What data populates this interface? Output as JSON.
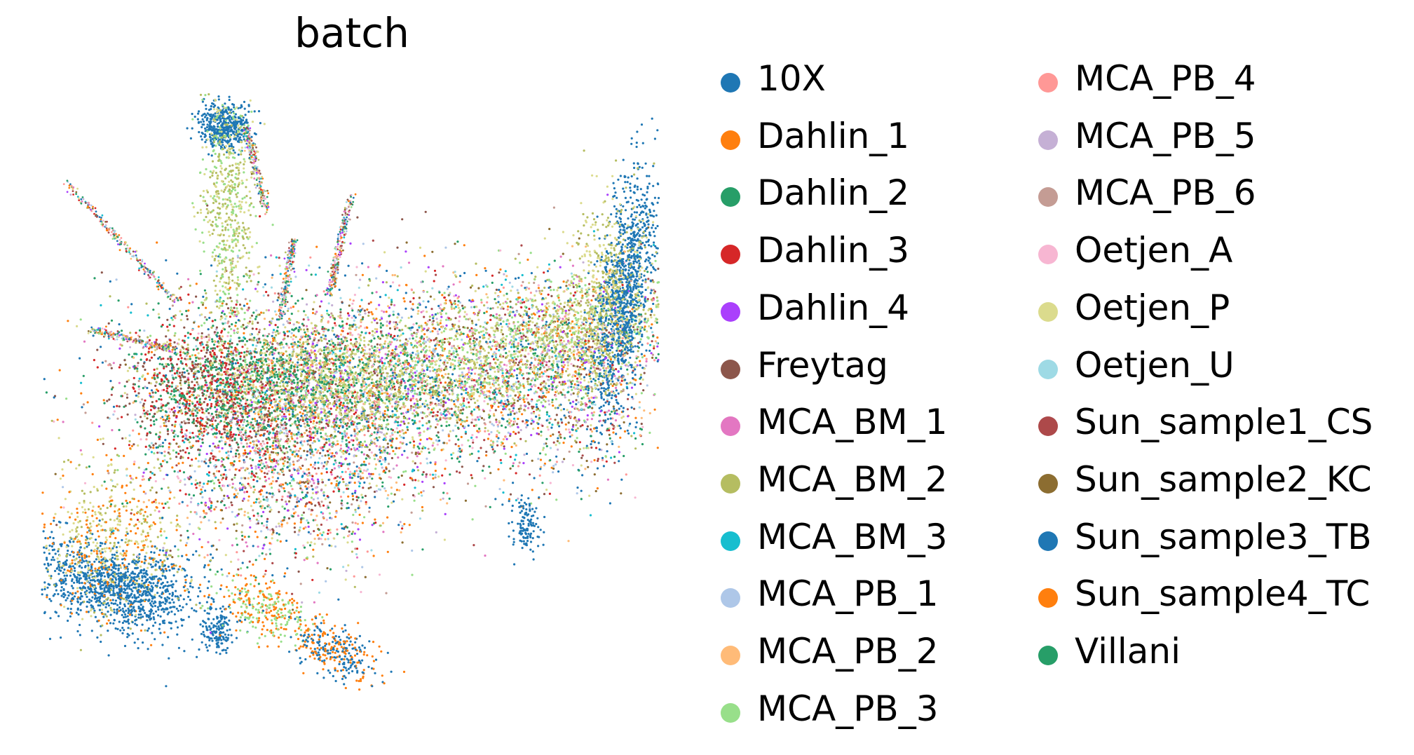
{
  "chart_data": {
    "type": "scatter",
    "title": "batch",
    "xlabel": "",
    "ylabel": "",
    "axes_visible": false,
    "legend_placement": "right, two columns",
    "series": [
      {
        "name": "10X",
        "color": "#1f77b4"
      },
      {
        "name": "Dahlin_1",
        "color": "#ff7f0e"
      },
      {
        "name": "Dahlin_2",
        "color": "#279e68"
      },
      {
        "name": "Dahlin_3",
        "color": "#d62728"
      },
      {
        "name": "Dahlin_4",
        "color": "#aa40fc"
      },
      {
        "name": "Freytag",
        "color": "#8c564b"
      },
      {
        "name": "MCA_BM_1",
        "color": "#e377c2"
      },
      {
        "name": "MCA_BM_2",
        "color": "#b5bd61"
      },
      {
        "name": "MCA_BM_3",
        "color": "#17becf"
      },
      {
        "name": "MCA_PB_1",
        "color": "#aec7e8"
      },
      {
        "name": "MCA_PB_2",
        "color": "#ffbb78"
      },
      {
        "name": "MCA_PB_3",
        "color": "#98df8a"
      },
      {
        "name": "MCA_PB_4",
        "color": "#ff9896"
      },
      {
        "name": "MCA_PB_5",
        "color": "#c5b0d5"
      },
      {
        "name": "MCA_PB_6",
        "color": "#c49c94"
      },
      {
        "name": "Oetjen_A",
        "color": "#f7b6d2"
      },
      {
        "name": "Oetjen_P",
        "color": "#dbdb8d"
      },
      {
        "name": "Oetjen_U",
        "color": "#9edae5"
      },
      {
        "name": "Sun_sample1_CS",
        "color": "#ad494a"
      },
      {
        "name": "Sun_sample2_KC",
        "color": "#8c6d31"
      },
      {
        "name": "Sun_sample3_TB",
        "color": "#1f77b4"
      },
      {
        "name": "Sun_sample4_TC",
        "color": "#ff7f0e"
      },
      {
        "name": "Villani",
        "color": "#279e68"
      }
    ]
  }
}
